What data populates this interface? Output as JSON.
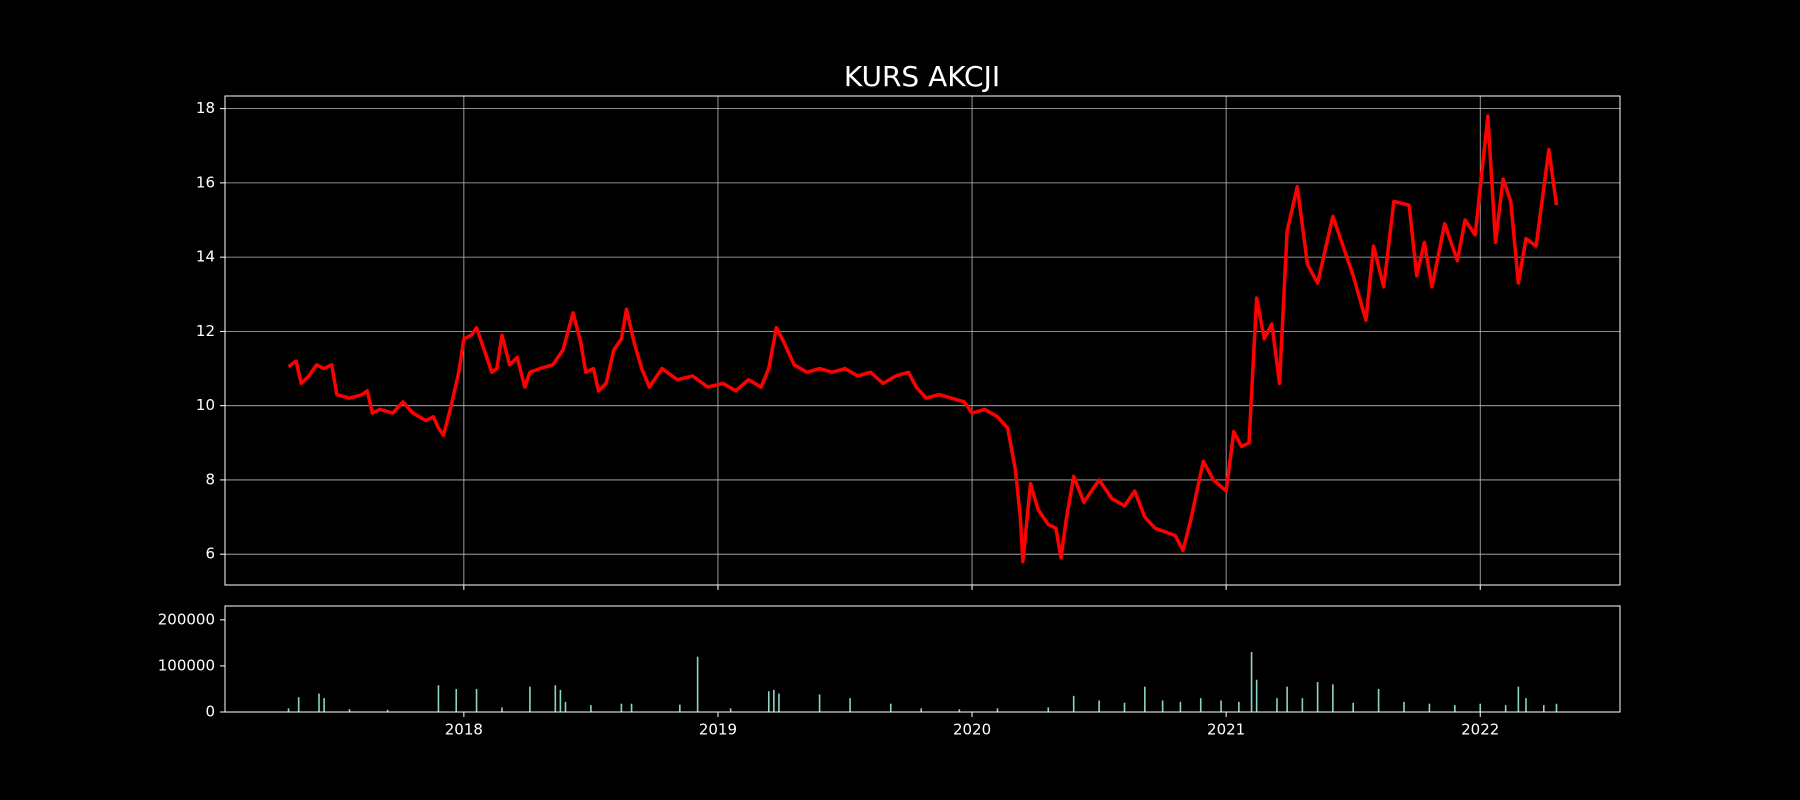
{
  "chart_data": [
    {
      "type": "line",
      "title": "KURS AKCJI",
      "xlim": [
        2017.06,
        2022.55
      ],
      "xticks": [
        2018,
        2019,
        2020,
        2021,
        2022
      ],
      "ylim": [
        5.17,
        18.34
      ],
      "yticks": [
        6,
        8,
        10,
        12,
        14,
        16,
        18
      ],
      "grid": true,
      "series": [
        {
          "color": "#ff0000",
          "x": [
            2017.31,
            2017.34,
            2017.36,
            2017.39,
            2017.42,
            2017.45,
            2017.48,
            2017.5,
            2017.55,
            2017.6,
            2017.62,
            2017.64,
            2017.67,
            2017.72,
            2017.76,
            2017.8,
            2017.85,
            2017.88,
            2017.9,
            2017.92,
            2017.95,
            2017.98,
            2018.0,
            2018.03,
            2018.05,
            2018.08,
            2018.11,
            2018.13,
            2018.15,
            2018.18,
            2018.21,
            2018.24,
            2018.26,
            2018.3,
            2018.35,
            2018.39,
            2018.41,
            2018.43,
            2018.46,
            2018.48,
            2018.51,
            2018.53,
            2018.56,
            2018.59,
            2018.62,
            2018.64,
            2018.67,
            2018.7,
            2018.73,
            2018.78,
            2018.84,
            2018.9,
            2018.96,
            2019.02,
            2019.07,
            2019.12,
            2019.17,
            2019.2,
            2019.23,
            2019.26,
            2019.3,
            2019.35,
            2019.4,
            2019.45,
            2019.5,
            2019.55,
            2019.6,
            2019.65,
            2019.7,
            2019.75,
            2019.78,
            2019.82,
            2019.87,
            2019.92,
            2019.97,
            2020.0,
            2020.05,
            2020.1,
            2020.14,
            2020.17,
            2020.19,
            2020.2,
            2020.23,
            2020.26,
            2020.3,
            2020.33,
            2020.35,
            2020.37,
            2020.4,
            2020.44,
            2020.5,
            2020.55,
            2020.6,
            2020.64,
            2020.68,
            2020.72,
            2020.76,
            2020.8,
            2020.83,
            2020.86,
            2020.91,
            2020.95,
            2021.0,
            2021.03,
            2021.06,
            2021.09,
            2021.12,
            2021.15,
            2021.18,
            2021.21,
            2021.24,
            2021.28,
            2021.32,
            2021.36,
            2021.42,
            2021.5,
            2021.55,
            2021.58,
            2021.62,
            2021.66,
            2021.72,
            2021.75,
            2021.78,
            2021.81,
            2021.86,
            2021.91,
            2021.94,
            2021.98,
            2022.03,
            2022.06,
            2022.09,
            2022.12,
            2022.15,
            2022.18,
            2022.22,
            2022.27,
            2022.3
          ],
          "values": [
            11.05,
            11.2,
            10.6,
            10.8,
            11.1,
            11.0,
            11.1,
            10.3,
            10.2,
            10.3,
            10.4,
            9.8,
            9.9,
            9.8,
            10.1,
            9.8,
            9.6,
            9.7,
            9.4,
            9.2,
            10.0,
            10.9,
            11.8,
            11.9,
            12.1,
            11.5,
            10.9,
            11.0,
            11.9,
            11.1,
            11.3,
            10.5,
            10.9,
            11.0,
            11.1,
            11.5,
            12.0,
            12.5,
            11.7,
            10.9,
            11.0,
            10.4,
            10.6,
            11.5,
            11.8,
            12.6,
            11.7,
            11.0,
            10.5,
            11.0,
            10.7,
            10.8,
            10.5,
            10.6,
            10.4,
            10.7,
            10.5,
            11.0,
            12.1,
            11.7,
            11.1,
            10.9,
            11.0,
            10.9,
            11.0,
            10.8,
            10.9,
            10.6,
            10.8,
            10.9,
            10.5,
            10.2,
            10.3,
            10.2,
            10.1,
            9.8,
            9.9,
            9.7,
            9.4,
            8.3,
            7.0,
            5.8,
            7.9,
            7.2,
            6.8,
            6.7,
            5.9,
            6.9,
            8.1,
            7.4,
            8.0,
            7.5,
            7.3,
            7.7,
            7.0,
            6.7,
            6.6,
            6.5,
            6.1,
            6.9,
            8.5,
            8.0,
            7.7,
            9.3,
            8.9,
            9.0,
            12.9,
            11.8,
            12.2,
            10.6,
            14.7,
            15.9,
            13.8,
            13.3,
            15.1,
            13.5,
            12.3,
            14.3,
            13.2,
            15.5,
            15.4,
            13.5,
            14.4,
            13.2,
            14.9,
            13.9,
            15.0,
            14.6,
            17.8,
            14.4,
            16.1,
            15.5,
            13.3,
            14.5,
            14.3,
            16.9,
            15.4
          ]
        }
      ]
    },
    {
      "type": "bar",
      "xlim": [
        2017.06,
        2022.55
      ],
      "xticks": [
        2018,
        2019,
        2020,
        2021,
        2022
      ],
      "ylim": [
        0,
        230000
      ],
      "yticks": [
        0,
        100000,
        200000
      ],
      "series": [
        {
          "color": "#8dd3c7",
          "x": [
            2017.31,
            2017.35,
            2017.43,
            2017.45,
            2017.55,
            2017.7,
            2017.9,
            2017.97,
            2018.05,
            2018.15,
            2018.26,
            2018.36,
            2018.38,
            2018.4,
            2018.5,
            2018.62,
            2018.66,
            2018.85,
            2018.92,
            2019.05,
            2019.2,
            2019.22,
            2019.24,
            2019.4,
            2019.52,
            2019.68,
            2019.8,
            2019.95,
            2020.1,
            2020.3,
            2020.4,
            2020.5,
            2020.6,
            2020.68,
            2020.75,
            2020.82,
            2020.9,
            2020.98,
            2021.05,
            2021.1,
            2021.12,
            2021.2,
            2021.24,
            2021.3,
            2021.36,
            2021.42,
            2021.5,
            2021.6,
            2021.7,
            2021.8,
            2021.9,
            2022.0,
            2022.1,
            2022.15,
            2022.18,
            2022.25,
            2022.3
          ],
          "values": [
            8000,
            32000,
            40000,
            30000,
            6000,
            5000,
            58000,
            50000,
            50000,
            10000,
            55000,
            58000,
            48000,
            22000,
            15000,
            18000,
            18000,
            16000,
            120000,
            8000,
            45000,
            48000,
            40000,
            38000,
            30000,
            18000,
            8000,
            6000,
            8000,
            10000,
            35000,
            25000,
            20000,
            55000,
            25000,
            22000,
            30000,
            25000,
            22000,
            130000,
            70000,
            30000,
            55000,
            30000,
            65000,
            60000,
            20000,
            50000,
            22000,
            18000,
            15000,
            18000,
            15000,
            55000,
            30000,
            15000,
            18000
          ]
        }
      ]
    }
  ]
}
